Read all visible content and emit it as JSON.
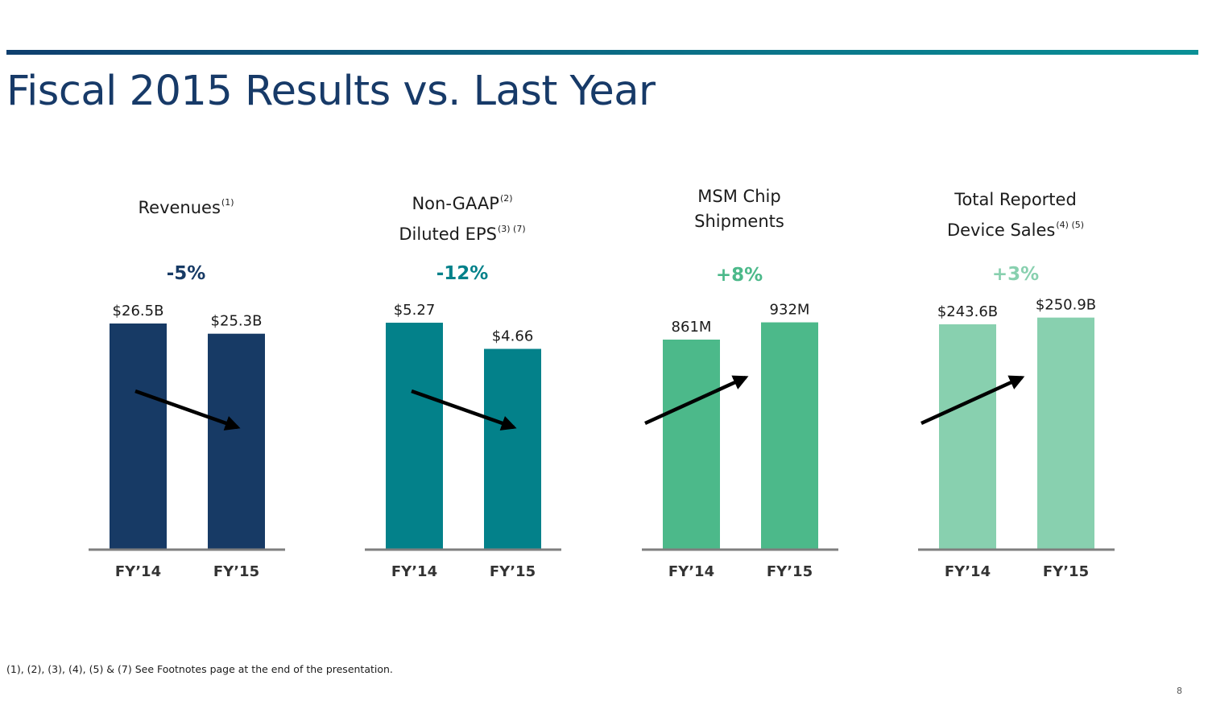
{
  "page": {
    "title": "Fiscal 2015 Results vs. Last Year",
    "footnote": "(1), (2), (3), (4), (5) & (7) See Footnotes page at the end of the presentation.",
    "page_number": "8"
  },
  "panels": [
    {
      "title_lines": [
        {
          "text": "Revenues",
          "sup": "(1)"
        }
      ],
      "change": "-5%",
      "color": "#173a65",
      "trend": "down"
    },
    {
      "title_lines": [
        {
          "text": "Non-GAAP",
          "sup": "(2)"
        },
        {
          "text": "Diluted EPS",
          "sup": "(3) (7)"
        }
      ],
      "change": "-12%",
      "color": "#03818a",
      "trend": "down"
    },
    {
      "title_lines": [
        {
          "text": "MSM Chip",
          "sup": ""
        },
        {
          "text": "Shipments",
          "sup": ""
        }
      ],
      "change": "+8%",
      "color": "#4cb98a",
      "trend": "up"
    },
    {
      "title_lines": [
        {
          "text": "Total Reported",
          "sup": ""
        },
        {
          "text": "Device Sales",
          "sup": "(4) (5)"
        }
      ],
      "change": "+3%",
      "color": "#88d0af",
      "trend": "up"
    }
  ],
  "chart_data": [
    {
      "type": "bar",
      "title": "Revenues(1)",
      "categories": [
        "FY’14",
        "FY’15"
      ],
      "values": [
        26.5,
        25.3
      ],
      "labels": [
        "$26.5B",
        "$25.3B"
      ],
      "unit": "$B",
      "change": "-5%",
      "color": "#173a65"
    },
    {
      "type": "bar",
      "title": "Non-GAAP(2) Diluted EPS(3)(7)",
      "categories": [
        "FY’14",
        "FY’15"
      ],
      "values": [
        5.27,
        4.66
      ],
      "labels": [
        "$5.27",
        "$4.66"
      ],
      "unit": "$",
      "change": "-12%",
      "color": "#03818a"
    },
    {
      "type": "bar",
      "title": "MSM Chip Shipments",
      "categories": [
        "FY’14",
        "FY’15"
      ],
      "values": [
        861,
        932
      ],
      "labels": [
        "861M",
        "932M"
      ],
      "unit": "M",
      "change": "+8%",
      "color": "#4cb98a"
    },
    {
      "type": "bar",
      "title": "Total Reported Device Sales(4)(5)",
      "categories": [
        "FY’14",
        "FY’15"
      ],
      "values": [
        243.6,
        250.9
      ],
      "labels": [
        "$243.6B",
        "$250.9B"
      ],
      "unit": "$B",
      "change": "+3%",
      "color": "#88d0af"
    }
  ]
}
